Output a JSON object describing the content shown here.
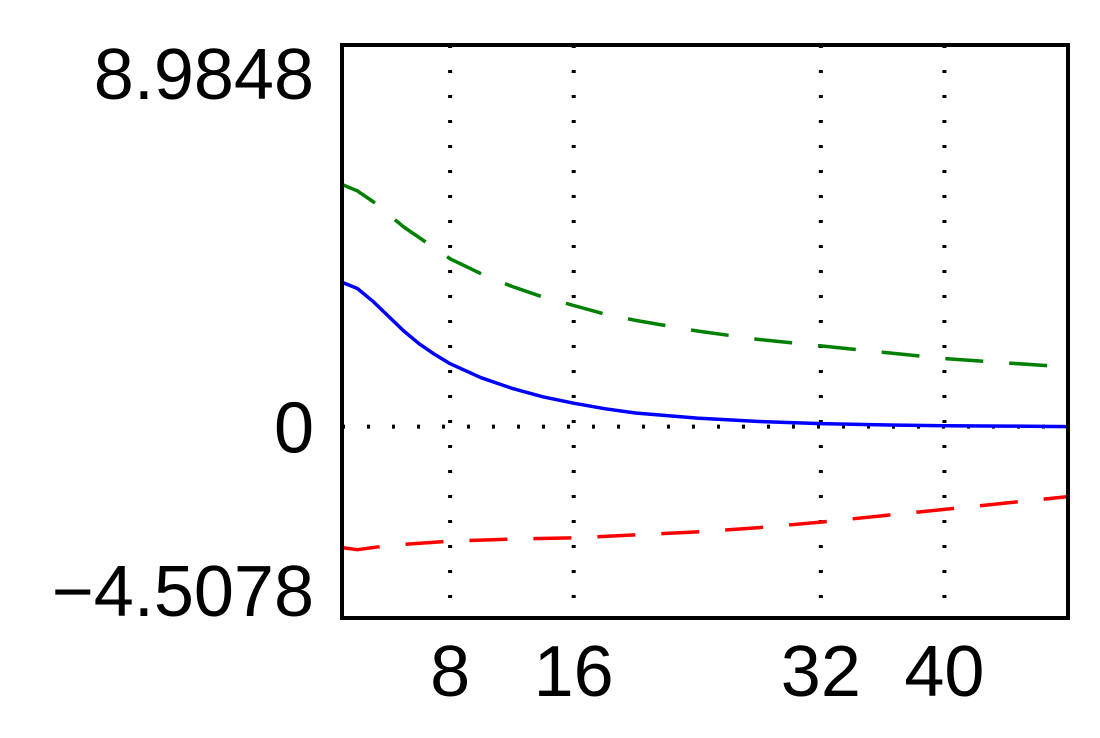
{
  "chart_data": {
    "type": "line",
    "title": "",
    "xlabel": "",
    "ylabel": "",
    "xlim": [
      1,
      48
    ],
    "ylim": [
      -4.5078,
      8.9848
    ],
    "x_ticks": [
      8,
      16,
      32,
      40
    ],
    "x_tick_labels": [
      "8",
      "16",
      "32",
      "40"
    ],
    "y_ticks": [
      -4.5078,
      0,
      8.9848
    ],
    "y_tick_labels": [
      "−4.5078",
      "0",
      "8.9848"
    ],
    "grid": "dotted vertical lines at x ticks, dotted horizontal line at y = 0",
    "series": [
      {
        "color": "#008000",
        "style": "dashed",
        "x": [
          1,
          2,
          3,
          4,
          5,
          6,
          7,
          8,
          10,
          12,
          14,
          16,
          18,
          20,
          24,
          28,
          32,
          36,
          40,
          44,
          48
        ],
        "y": [
          5.7,
          5.55,
          5.3,
          5.0,
          4.7,
          4.45,
          4.2,
          3.95,
          3.6,
          3.3,
          3.05,
          2.85,
          2.65,
          2.5,
          2.25,
          2.05,
          1.9,
          1.75,
          1.6,
          1.5,
          1.4
        ]
      },
      {
        "color": "#0000ff",
        "style": "solid",
        "x": [
          1,
          2,
          3,
          4,
          5,
          6,
          7,
          8,
          10,
          12,
          14,
          16,
          18,
          20,
          24,
          28,
          32,
          36,
          40,
          44,
          48
        ],
        "y": [
          3.4,
          3.25,
          2.95,
          2.6,
          2.25,
          1.95,
          1.7,
          1.48,
          1.15,
          0.9,
          0.7,
          0.55,
          0.42,
          0.32,
          0.2,
          0.12,
          0.07,
          0.04,
          0.02,
          0.01,
          0.0
        ]
      },
      {
        "color": "#ff0000",
        "style": "dashed",
        "x": [
          1,
          2,
          4,
          8,
          12,
          16,
          20,
          24,
          28,
          32,
          36,
          40,
          44,
          48
        ],
        "y": [
          -2.85,
          -2.9,
          -2.8,
          -2.7,
          -2.65,
          -2.62,
          -2.55,
          -2.48,
          -2.38,
          -2.25,
          -2.1,
          -1.95,
          -1.8,
          -1.65
        ]
      }
    ]
  }
}
